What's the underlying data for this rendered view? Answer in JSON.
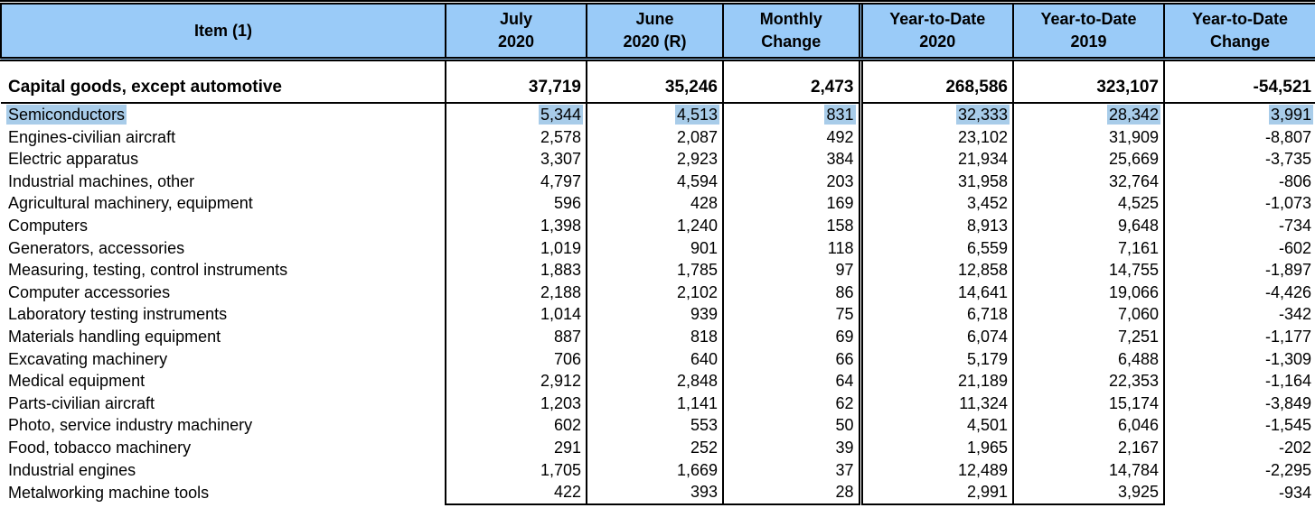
{
  "colors": {
    "header_bg": "#9ACBF8",
    "selection_highlight": "#A8CCE9",
    "border": "#000000"
  },
  "table": {
    "headers": [
      {
        "l1": "Item (1)",
        "l2": ""
      },
      {
        "l1": "July",
        "l2": "2020"
      },
      {
        "l1": "June",
        "l2": "2020 (R)"
      },
      {
        "l1": "Monthly",
        "l2": "Change"
      },
      {
        "l1": "Year-to-Date",
        "l2": "2020"
      },
      {
        "l1": "Year-to-Date",
        "l2": "2019"
      },
      {
        "l1": "Year-to-Date",
        "l2": "Change"
      }
    ],
    "summary": {
      "item": "Capital goods, except automotive",
      "values": [
        "37,719",
        "35,246",
        "2,473",
        "268,586",
        "323,107",
        "-54,521"
      ]
    },
    "rows": [
      {
        "item": "Semiconductors",
        "values": [
          "5,344",
          "4,513",
          "831",
          "32,333",
          "28,342",
          "3,991"
        ],
        "highlighted": true
      },
      {
        "item": "Engines-civilian aircraft",
        "values": [
          "2,578",
          "2,087",
          "492",
          "23,102",
          "31,909",
          "-8,807"
        ],
        "highlighted": false
      },
      {
        "item": "Electric apparatus",
        "values": [
          "3,307",
          "2,923",
          "384",
          "21,934",
          "25,669",
          "-3,735"
        ],
        "highlighted": false
      },
      {
        "item": "Industrial machines, other",
        "values": [
          "4,797",
          "4,594",
          "203",
          "31,958",
          "32,764",
          "-806"
        ],
        "highlighted": false
      },
      {
        "item": "Agricultural machinery, equipment",
        "values": [
          "596",
          "428",
          "169",
          "3,452",
          "4,525",
          "-1,073"
        ],
        "highlighted": false
      },
      {
        "item": "Computers",
        "values": [
          "1,398",
          "1,240",
          "158",
          "8,913",
          "9,648",
          "-734"
        ],
        "highlighted": false
      },
      {
        "item": "Generators, accessories",
        "values": [
          "1,019",
          "901",
          "118",
          "6,559",
          "7,161",
          "-602"
        ],
        "highlighted": false
      },
      {
        "item": "Measuring, testing, control instruments",
        "values": [
          "1,883",
          "1,785",
          "97",
          "12,858",
          "14,755",
          "-1,897"
        ],
        "highlighted": false
      },
      {
        "item": "Computer accessories",
        "values": [
          "2,188",
          "2,102",
          "86",
          "14,641",
          "19,066",
          "-4,426"
        ],
        "highlighted": false
      },
      {
        "item": "Laboratory testing instruments",
        "values": [
          "1,014",
          "939",
          "75",
          "6,718",
          "7,060",
          "-342"
        ],
        "highlighted": false
      },
      {
        "item": "Materials handling equipment",
        "values": [
          "887",
          "818",
          "69",
          "6,074",
          "7,251",
          "-1,177"
        ],
        "highlighted": false
      },
      {
        "item": "Excavating machinery",
        "values": [
          "706",
          "640",
          "66",
          "5,179",
          "6,488",
          "-1,309"
        ],
        "highlighted": false
      },
      {
        "item": "Medical equipment",
        "values": [
          "2,912",
          "2,848",
          "64",
          "21,189",
          "22,353",
          "-1,164"
        ],
        "highlighted": false
      },
      {
        "item": "Parts-civilian aircraft",
        "values": [
          "1,203",
          "1,141",
          "62",
          "11,324",
          "15,174",
          "-3,849"
        ],
        "highlighted": false
      },
      {
        "item": "Photo, service industry machinery",
        "values": [
          "602",
          "553",
          "50",
          "4,501",
          "6,046",
          "-1,545"
        ],
        "highlighted": false
      },
      {
        "item": "Food, tobacco machinery",
        "values": [
          "291",
          "252",
          "39",
          "1,965",
          "2,167",
          "-202"
        ],
        "highlighted": false
      },
      {
        "item": "Industrial engines",
        "values": [
          "1,705",
          "1,669",
          "37",
          "12,489",
          "14,784",
          "-2,295"
        ],
        "highlighted": false
      },
      {
        "item": "Metalworking machine tools",
        "values": [
          "422",
          "393",
          "28",
          "2,991",
          "3,925",
          "-934"
        ],
        "highlighted": false
      }
    ]
  }
}
